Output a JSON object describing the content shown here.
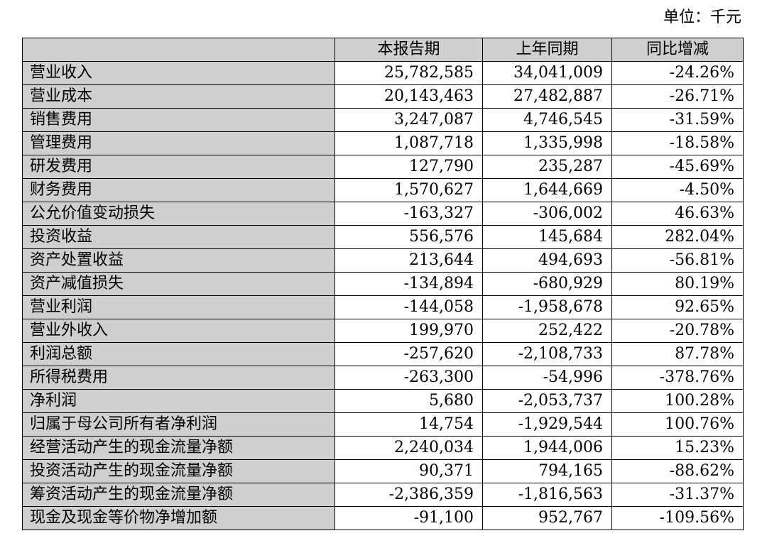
{
  "unit_label": "单位：千元",
  "table": {
    "headers": [
      "",
      "本报告期",
      "上年同期",
      "同比增减"
    ],
    "rows": [
      [
        "营业收入",
        "25,782,585",
        "34,041,009",
        "-24.26%"
      ],
      [
        "营业成本",
        "20,143,463",
        "27,482,887",
        "-26.71%"
      ],
      [
        "销售费用",
        "3,247,087",
        "4,746,545",
        "-31.59%"
      ],
      [
        "管理费用",
        "1,087,718",
        "1,335,998",
        "-18.58%"
      ],
      [
        "研发费用",
        "127,790",
        "235,287",
        "-45.69%"
      ],
      [
        "财务费用",
        "1,570,627",
        "1,644,669",
        "-4.50%"
      ],
      [
        "公允价值变动损失",
        "-163,327",
        "-306,002",
        "46.63%"
      ],
      [
        "投资收益",
        "556,576",
        "145,684",
        "282.04%"
      ],
      [
        "资产处置收益",
        "213,644",
        "494,693",
        "-56.81%"
      ],
      [
        "资产减值损失",
        "-134,894",
        "-680,929",
        "80.19%"
      ],
      [
        "营业利润",
        "-144,058",
        "-1,958,678",
        "92.65%"
      ],
      [
        "营业外收入",
        "199,970",
        "252,422",
        "-20.78%"
      ],
      [
        "利润总额",
        "-257,620",
        "-2,108,733",
        "87.78%"
      ],
      [
        "所得税费用",
        "-263,300",
        "-54,996",
        "-378.76%"
      ],
      [
        "净利润",
        "5,680",
        "-2,053,737",
        "100.28%"
      ],
      [
        "归属于母公司所有者净利润",
        "14,754",
        "-1,929,544",
        "100.76%"
      ],
      [
        "经营活动产生的现金流量净额",
        "2,240,034",
        "1,944,006",
        "15.23%"
      ],
      [
        "投资活动产生的现金流量净额",
        "90,371",
        "794,165",
        "-88.62%"
      ],
      [
        "筹资活动产生的现金流量净额",
        "-2,386,359",
        "-1,816,563",
        "-31.37%"
      ],
      [
        "现金及现金等价物净增加额",
        "-91,100",
        "952,767",
        "-109.56%"
      ]
    ]
  },
  "colors": {
    "label_fill": "#d0cece",
    "border": "#000000"
  }
}
